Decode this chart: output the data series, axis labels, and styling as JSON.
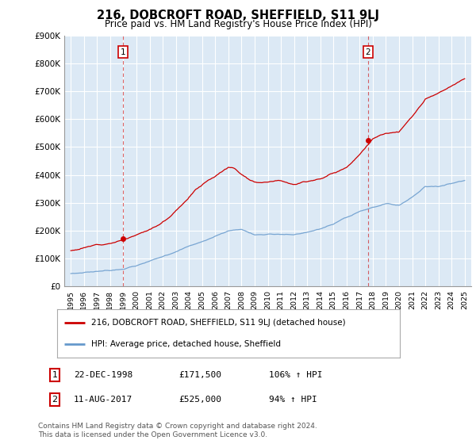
{
  "title": "216, DOBCROFT ROAD, SHEFFIELD, S11 9LJ",
  "subtitle": "Price paid vs. HM Land Registry's House Price Index (HPI)",
  "ylabel_ticks": [
    "£0",
    "£100K",
    "£200K",
    "£300K",
    "£400K",
    "£500K",
    "£600K",
    "£700K",
    "£800K",
    "£900K"
  ],
  "ytick_values": [
    0,
    100000,
    200000,
    300000,
    400000,
    500000,
    600000,
    700000,
    800000,
    900000
  ],
  "ylim": [
    0,
    900000
  ],
  "sale1_year": 1998.958,
  "sale1_price": 171500,
  "sale2_year": 2017.625,
  "sale2_price": 525000,
  "sale1_date_str": "22-DEC-1998",
  "sale1_price_str": "£171,500",
  "sale1_pct_str": "106% ↑ HPI",
  "sale2_date_str": "11-AUG-2017",
  "sale2_price_str": "£525,000",
  "sale2_pct_str": "94% ↑ HPI",
  "red_color": "#cc0000",
  "blue_color": "#6699cc",
  "plot_bg_color": "#dce9f5",
  "background_color": "#ffffff",
  "grid_color": "#ffffff",
  "footer_text": "Contains HM Land Registry data © Crown copyright and database right 2024.\nThis data is licensed under the Open Government Licence v3.0.",
  "legend_label_red": "216, DOBCROFT ROAD, SHEFFIELD, S11 9LJ (detached house)",
  "legend_label_blue": "HPI: Average price, detached house, Sheffield",
  "xlim_left": 1994.5,
  "xlim_right": 2025.5
}
